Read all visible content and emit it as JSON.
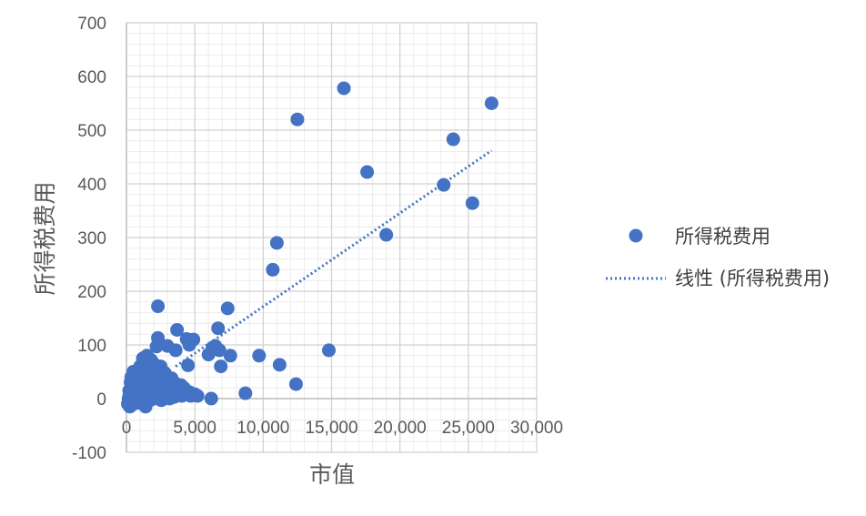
{
  "chart_data": {
    "type": "scatter",
    "xlabel": "市值",
    "ylabel": "所得税费用",
    "xlim": [
      0,
      30000
    ],
    "ylim": [
      -100,
      700
    ],
    "x_ticks": [
      "0",
      "5,000",
      "10,000",
      "15,000",
      "20,000",
      "25,000",
      "30,000"
    ],
    "y_ticks": [
      "700",
      "600",
      "500",
      "400",
      "300",
      "200",
      "100",
      "0",
      "-100"
    ],
    "grid": true,
    "legend_position": "right",
    "series": [
      {
        "name": "所得税费用",
        "color": "#4472C4",
        "points": [
          [
            2300,
            172
          ],
          [
            3700,
            128
          ],
          [
            2300,
            113
          ],
          [
            3000,
            98
          ],
          [
            2200,
            97
          ],
          [
            4400,
            111
          ],
          [
            4600,
            100
          ],
          [
            3600,
            90
          ],
          [
            4900,
            110
          ],
          [
            4500,
            62
          ],
          [
            6000,
            82
          ],
          [
            6700,
            131
          ],
          [
            6500,
            98
          ],
          [
            6300,
            95
          ],
          [
            7400,
            168
          ],
          [
            7600,
            80
          ],
          [
            6900,
            60
          ],
          [
            6800,
            90
          ],
          [
            9700,
            80
          ],
          [
            10700,
            240
          ],
          [
            11000,
            290
          ],
          [
            11200,
            63
          ],
          [
            12400,
            27
          ],
          [
            8700,
            10
          ],
          [
            6200,
            0
          ],
          [
            12500,
            520
          ],
          [
            14800,
            90
          ],
          [
            15900,
            578
          ],
          [
            17600,
            422
          ],
          [
            19000,
            305
          ],
          [
            23200,
            398
          ],
          [
            23900,
            483
          ],
          [
            25300,
            364
          ],
          [
            26700,
            550
          ],
          [
            1200,
            75
          ],
          [
            1500,
            80
          ],
          [
            1800,
            72
          ],
          [
            1000,
            60
          ],
          [
            1400,
            55
          ],
          [
            2000,
            65
          ],
          [
            2500,
            60
          ],
          [
            2800,
            48
          ],
          [
            500,
            50
          ],
          [
            700,
            45
          ],
          [
            900,
            40
          ],
          [
            1100,
            35
          ],
          [
            1300,
            30
          ],
          [
            1600,
            28
          ],
          [
            1900,
            25
          ],
          [
            2200,
            20
          ],
          [
            2600,
            22
          ],
          [
            3000,
            18
          ],
          [
            3400,
            25
          ],
          [
            3800,
            15
          ],
          [
            4200,
            20
          ],
          [
            4600,
            12
          ],
          [
            5000,
            8
          ],
          [
            5200,
            5
          ],
          [
            300,
            30
          ],
          [
            400,
            20
          ],
          [
            600,
            15
          ],
          [
            800,
            10
          ],
          [
            1000,
            5
          ],
          [
            1200,
            2
          ],
          [
            1500,
            0
          ],
          [
            1800,
            -2
          ],
          [
            200,
            5
          ],
          [
            300,
            -5
          ],
          [
            100,
            -10
          ],
          [
            400,
            -12
          ],
          [
            700,
            -5
          ],
          [
            900,
            -8
          ],
          [
            1300,
            -10
          ],
          [
            1700,
            -3
          ],
          [
            2100,
            5
          ],
          [
            2400,
            10
          ],
          [
            2700,
            2
          ],
          [
            3100,
            8
          ],
          [
            3500,
            3
          ],
          [
            3900,
            6
          ],
          [
            4300,
            10
          ],
          [
            4700,
            5
          ],
          [
            500,
            35
          ],
          [
            900,
            55
          ],
          [
            1100,
            45
          ],
          [
            1500,
            40
          ],
          [
            1700,
            50
          ],
          [
            2000,
            38
          ],
          [
            2300,
            42
          ],
          [
            2600,
            35
          ],
          [
            3000,
            30
          ],
          [
            3300,
            38
          ],
          [
            3600,
            28
          ],
          [
            4000,
            25
          ],
          [
            200,
            15
          ],
          [
            350,
            40
          ],
          [
            650,
            25
          ],
          [
            850,
            30
          ],
          [
            150,
            0
          ],
          [
            250,
            -15
          ],
          [
            450,
            8
          ],
          [
            750,
            18
          ],
          [
            1050,
            22
          ],
          [
            1250,
            12
          ],
          [
            1450,
            15
          ],
          [
            1650,
            8
          ],
          [
            1950,
            12
          ],
          [
            2250,
            0
          ],
          [
            2550,
            -3
          ],
          [
            2850,
            5
          ],
          [
            3150,
            0
          ],
          [
            3450,
            12
          ],
          [
            3750,
            10
          ],
          [
            4050,
            5
          ],
          [
            1200,
            48
          ],
          [
            1600,
            62
          ],
          [
            2100,
            55
          ],
          [
            2400,
            28
          ],
          [
            2700,
            15
          ],
          [
            3200,
            20
          ],
          [
            1400,
            -15
          ],
          [
            600,
            -8
          ]
        ]
      },
      {
        "name": "线性 (所得税费用)",
        "type": "trendline",
        "color": "#4472C4",
        "points": [
          [
            3600,
            60
          ],
          [
            26700,
            462
          ]
        ]
      }
    ]
  }
}
